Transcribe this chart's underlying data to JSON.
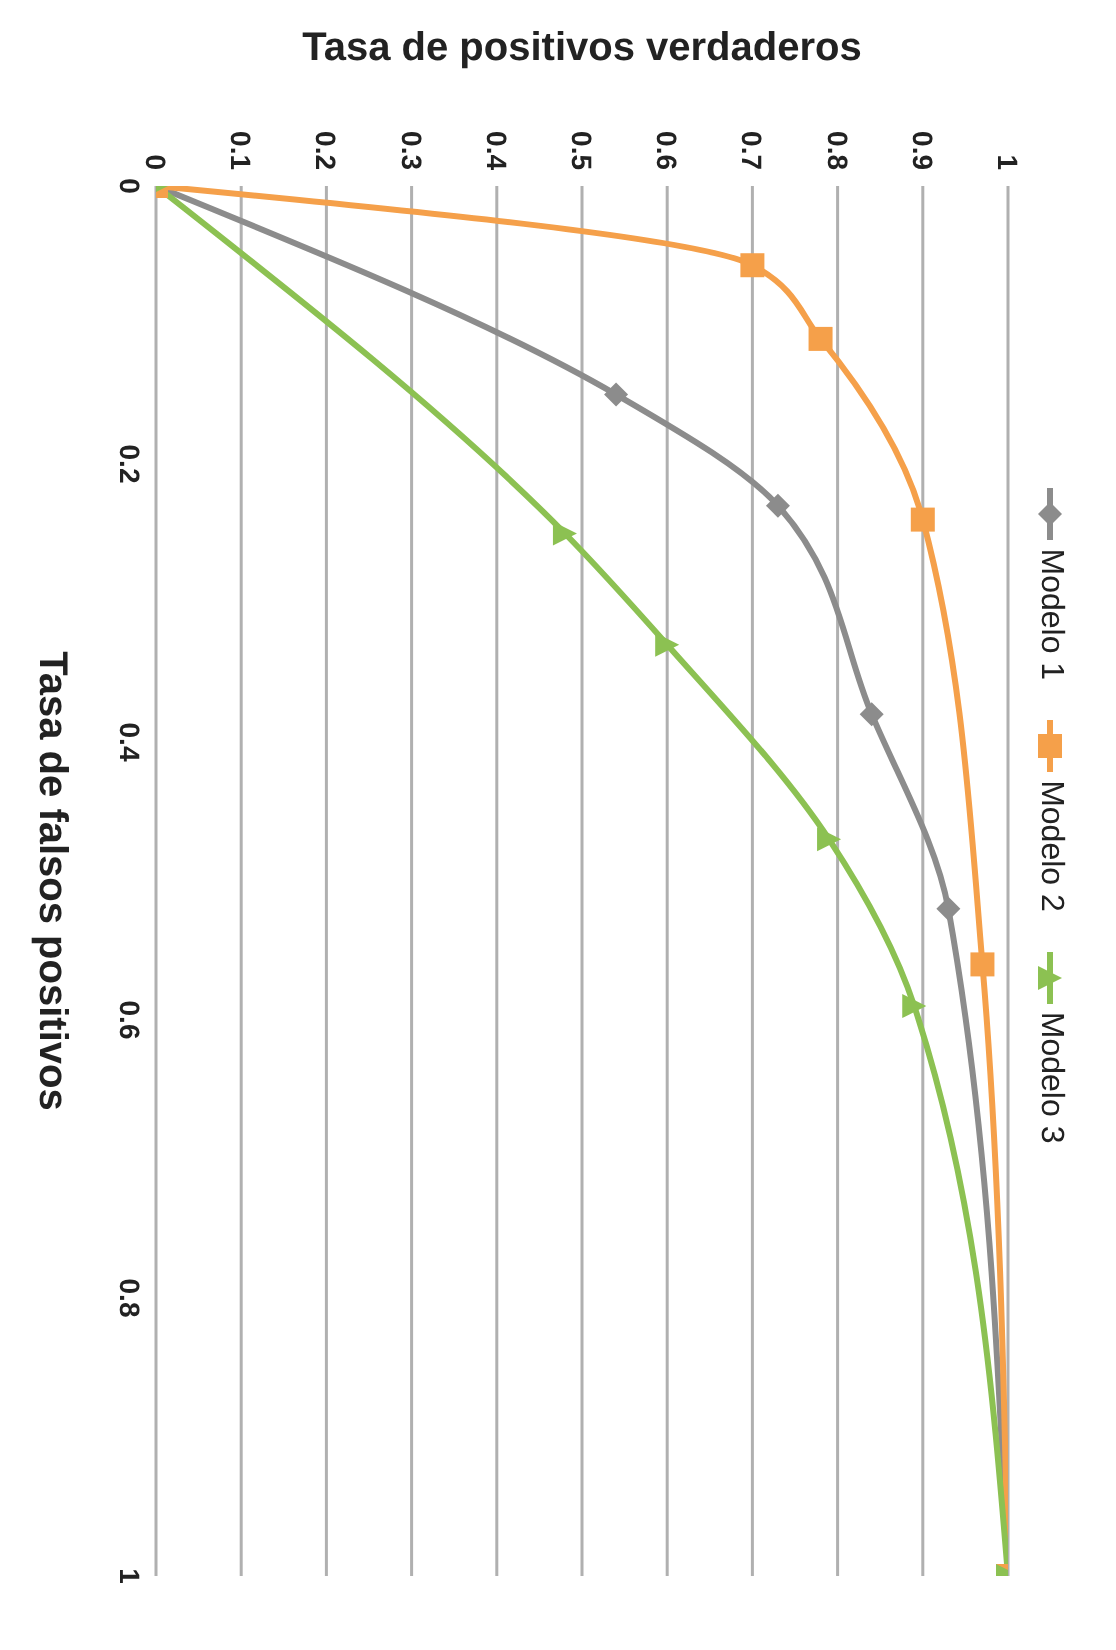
{
  "chart_data": {
    "type": "line",
    "xlabel": "Tasa de positivos verdaderos",
    "ylabel": "Tasa de falsos positivos",
    "xlim": [
      0,
      1
    ],
    "xticks": [
      0,
      0.1,
      0.2,
      0.3,
      0.4,
      0.5,
      0.6,
      0.7,
      0.8,
      0.9,
      1
    ],
    "ylim": [
      1,
      0
    ],
    "yticks": [
      0,
      0.2,
      0.4,
      0.6,
      0.8,
      1
    ],
    "grid": "x",
    "legend": "right",
    "series": [
      {
        "name": "Modelo 1",
        "color": "#8c8c8c",
        "marker": "diamond",
        "x": [
          0,
          0.54,
          0.73,
          0.84,
          0.93,
          1
        ],
        "values": [
          0,
          0.15,
          0.23,
          0.38,
          0.52,
          1
        ]
      },
      {
        "name": "Modelo 2",
        "color": "#f5a04a",
        "marker": "square",
        "x": [
          0,
          0.7,
          0.78,
          0.9,
          0.97,
          1
        ],
        "values": [
          0,
          0.057,
          0.11,
          0.24,
          0.56,
          1
        ]
      },
      {
        "name": "Modelo 3",
        "color": "#8cc152",
        "marker": "triangle",
        "x": [
          0,
          0.48,
          0.6,
          0.79,
          0.89,
          1
        ],
        "values": [
          0,
          0.25,
          0.33,
          0.47,
          0.59,
          1
        ]
      }
    ]
  }
}
